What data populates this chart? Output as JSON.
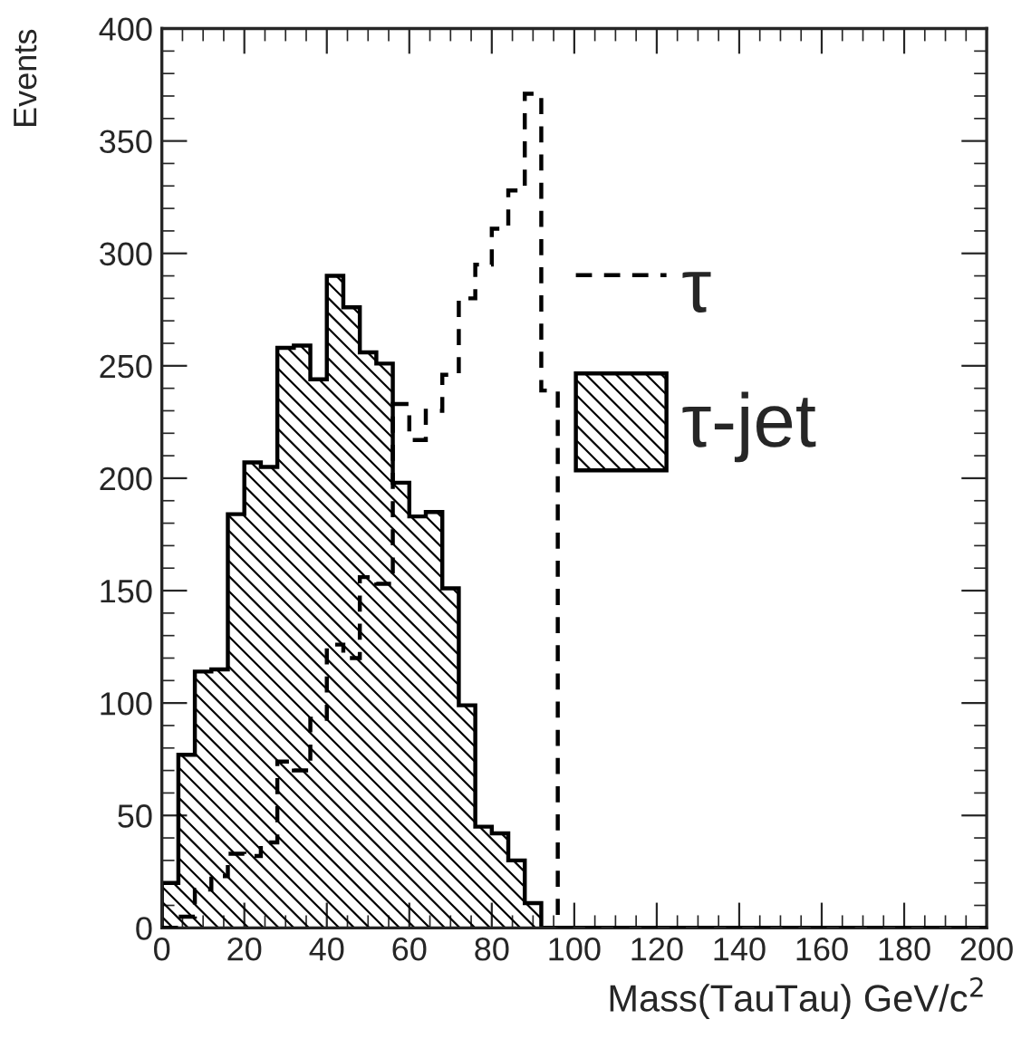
{
  "chart_data": {
    "type": "histogram",
    "xlabel": "Mass(TauTau) GeV/c$^{2}$",
    "ylabel": "Events",
    "bins": [
      0,
      4,
      8,
      12,
      16,
      20,
      24,
      28,
      32,
      36,
      40,
      44,
      48,
      52,
      56,
      60,
      64,
      68,
      72,
      76,
      80,
      84,
      88,
      92,
      96,
      100,
      104,
      108,
      112,
      116,
      120,
      124,
      128,
      132,
      136,
      140,
      144,
      148,
      152,
      156,
      160,
      164,
      168,
      172,
      176,
      180,
      184,
      188,
      192,
      196,
      200
    ],
    "series": [
      {
        "name": "τ",
        "color": "#000000",
        "line_style": "dashed",
        "values": [
          0,
          5,
          17,
          23,
          33,
          32,
          38,
          74,
          70,
          93,
          126,
          120,
          156,
          153,
          233,
          217,
          230,
          246,
          280,
          295,
          311,
          328,
          371,
          239,
          0,
          0,
          0,
          0,
          0,
          0,
          0,
          0,
          0,
          0,
          0,
          0,
          0,
          0,
          0,
          0,
          0,
          0,
          0,
          0,
          0,
          0,
          0,
          0,
          0,
          0
        ]
      },
      {
        "name": "τ-jet",
        "color": "#000000",
        "values": [
          20,
          77,
          114,
          115,
          184,
          207,
          205,
          258,
          259,
          244,
          290,
          276,
          256,
          251,
          198,
          183,
          185,
          151,
          99,
          45,
          42,
          30,
          11,
          0,
          0,
          0,
          0,
          0,
          0,
          0,
          0,
          0,
          0,
          0,
          0,
          0,
          0,
          0,
          0,
          0,
          0,
          0,
          0,
          0,
          0,
          0,
          0,
          0,
          0,
          0
        ]
      }
    ],
    "xlim": [
      0,
      200
    ],
    "ylim": [
      0,
      400
    ],
    "xticks": [
      0,
      20,
      40,
      60,
      80,
      100,
      120,
      140,
      160,
      180,
      200
    ],
    "yticks": [
      0,
      50,
      100,
      150,
      200,
      250,
      300,
      350,
      400
    ],
    "grid": false,
    "legend": "top right"
  }
}
